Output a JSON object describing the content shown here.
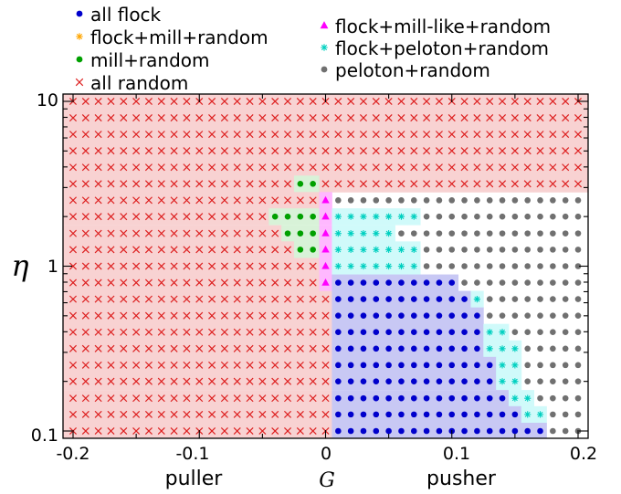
{
  "chart_data": {
    "type": "scatter",
    "title": "",
    "xlabel": "G",
    "ylabel": "η",
    "x_annotations": {
      "left": "puller",
      "right": "pusher"
    },
    "xlim": [
      -0.2,
      0.2
    ],
    "ylim": [
      0.1,
      10
    ],
    "y_scale": "log",
    "x_ticks": [
      "-0.2",
      "-0.1",
      "0",
      "0.1",
      "0.2"
    ],
    "y_ticks": [
      "0.1",
      "1",
      "10"
    ],
    "grid": false,
    "legend_position": "top",
    "x": [
      -0.2,
      -0.19,
      -0.18,
      -0.17,
      -0.16,
      -0.15,
      -0.14,
      -0.13,
      -0.12,
      -0.11,
      -0.1,
      -0.09,
      -0.08,
      -0.07,
      -0.06,
      -0.05,
      -0.04,
      -0.03,
      -0.02,
      -0.01,
      0,
      0.01,
      0.02,
      0.03,
      0.04,
      0.05,
      0.06,
      0.07,
      0.08,
      0.09,
      0.1,
      0.11,
      0.12,
      0.13,
      0.14,
      0.15,
      0.16,
      0.17,
      0.18,
      0.19,
      0.2
    ],
    "eta": [
      10,
      7.94,
      6.31,
      5.01,
      3.98,
      3.16,
      2.51,
      2.0,
      1.58,
      1.26,
      1.0,
      0.794,
      0.631,
      0.501,
      0.398,
      0.316,
      0.251,
      0.2,
      0.158,
      0.126,
      0.1
    ],
    "region_map": [
      "RRRRRRRRRRRRRRRRRRRRRRRRRRRRRRRRRRRRRRRRR",
      "RRRRRRRRRRRRRRRRRRRRRRRRRRRRRRRRRRRRRRRRR",
      "RRRRRRRRRRRRRRRRRRRRRRRRRRRRRRRRRRRRRRRRR",
      "RRRRRRRRRRRRRRRRRRRRRRRRRRRRRRRRRRRRRRRRR",
      "RRRRRRRRRRRRRRRRRRRRRRRRRRRRRRRRRRRRRRRRR",
      "RRRRRRRRRRRRRRRRRRMMRRRRRRRRRRRRRRRRRRRRR",
      "RRRRRRRRRRRRRRRRRRRRLPPPPPPPPPPPPPPPPPPPP",
      "RRRRRRRRRRRRRRRRMMMMLCCCCCCCPPPPPPPPPPPPP",
      "RRRRRRRRRRRRRRRRRMMMLCCCCCPPPPPPPPPPPPPPP",
      "RRRRRRRRRRRRRRRRRRMMLCCCCCCCPPPPPPPPPPPPP",
      "RRRRRRRRRRRRRRRRRRRRLCCCCCCCPPPPPPPPPPPPP",
      "RRRRRRRRRRRRRRRRRRRRLFFFFFFFFFFPPPPPPPPPP",
      "RRRRRRRRRRRRRRRRRRRRRFFFFFFFFFFFCPPPPPPPP",
      "RRRRRRRRRRRRRRRRRRRRRFFFFFFFFFFFFPPPPPPPP",
      "RRRRRRRRRRRRRRRRRRRRRFFFFFFFFFFFFCCPPPPPP",
      "RRRRRRRRRRRRRRRRRRRRRFFFFFFFFFFFFCCCPPPPP",
      "RRRRRRRRRRRRRRRRRRRRRFFFFFFFFFFFFFCCPPPPP",
      "RRRRRRRRRRRRRRRRRRRRRFFFFFFFFFFFFFCCPPPPP",
      "RRRRRRRRRRRRRRRRRRRRRFFFFFFFFFFFFFFCCPPPP",
      "RRRRRRRRRRRRRRRRRRRRRFFFFFFFFFFFFFFFCCPPP",
      "RRRRRRRRRRRRRRRRRRRRRFFFFFFFFFFFFFFFFFPPP"
    ],
    "categories_legend": [
      {
        "key": "F",
        "name": "all flock",
        "marker": "circle",
        "color": "#0000cc",
        "fill": "#c8c8f4"
      },
      {
        "key": "S",
        "name": "flock+mill+random",
        "marker": "asterisk",
        "color": "#ffa500",
        "fill": "#fff0d8"
      },
      {
        "key": "M",
        "name": "mill+random",
        "marker": "circle",
        "color": "#00a000",
        "fill": "#d8f2d8"
      },
      {
        "key": "R",
        "name": "all random",
        "marker": "cross",
        "color": "#dd2020",
        "fill": "#f8d2d2"
      },
      {
        "key": "L",
        "name": "flock+mill-like+random",
        "marker": "triangle",
        "color": "#ff00ff",
        "fill": "#ffb8ff"
      },
      {
        "key": "C",
        "name": "flock+peloton+random",
        "marker": "asterisk",
        "color": "#00d0c0",
        "fill": "#d0fafa"
      },
      {
        "key": "P",
        "name": "peloton+random",
        "marker": "circle",
        "color": "#707070",
        "fill": "none"
      }
    ]
  }
}
